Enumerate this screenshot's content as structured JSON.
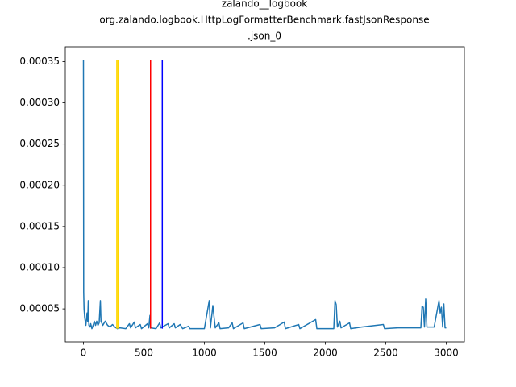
{
  "chart_data": {
    "type": "line",
    "title": [
      "zalando__logbook",
      "org.zalando.logbook.HttpLogFormatterBenchmark.fastJsonResponse",
      ".json_0"
    ],
    "x": [
      0,
      2,
      5,
      10,
      15,
      20,
      30,
      35,
      40,
      45,
      55,
      60,
      70,
      80,
      90,
      100,
      110,
      120,
      130,
      140,
      145,
      160,
      180,
      200,
      220,
      240,
      260,
      280,
      300,
      350,
      380,
      390,
      420,
      430,
      470,
      480,
      530,
      540,
      550,
      555,
      600,
      630,
      640,
      700,
      710,
      750,
      760,
      800,
      820,
      870,
      880,
      1000,
      1040,
      1050,
      1070,
      1080,
      1090,
      1120,
      1130,
      1200,
      1230,
      1240,
      1320,
      1330,
      1460,
      1470,
      1580,
      1660,
      1670,
      1780,
      1790,
      1920,
      1930,
      2070,
      2080,
      2090,
      2100,
      2120,
      2130,
      2200,
      2210,
      2300,
      2480,
      2490,
      2600,
      2790,
      2800,
      2810,
      2820,
      2830,
      2840,
      2900,
      2940,
      2950,
      2960,
      2970,
      2980,
      2990,
      3000
    ],
    "series": [
      {
        "color": "#1f77b4",
        "values": [
          0.000352,
          7e-05,
          5e-05,
          4e-05,
          3.5e-05,
          3e-05,
          4.5e-05,
          3.5e-05,
          6e-05,
          3e-05,
          2.8e-05,
          3.2e-05,
          2.6e-05,
          3e-05,
          3.5e-05,
          3e-05,
          3.5e-05,
          3e-05,
          3.3e-05,
          6e-05,
          3.5e-05,
          3e-05,
          3.5e-05,
          3e-05,
          2.8e-05,
          3.1e-05,
          2.8e-05,
          2.6e-05,
          2.7e-05,
          2.6e-05,
          3.2e-05,
          2.7e-05,
          3.4e-05,
          2.7e-05,
          3.1e-05,
          2.6e-05,
          3.2e-05,
          2.7e-05,
          4.2e-05,
          2.7e-05,
          2.6e-05,
          3.3e-05,
          2.7e-05,
          3.2e-05,
          2.7e-05,
          3.2e-05,
          2.7e-05,
          3.1e-05,
          2.6e-05,
          2.9e-05,
          2.6e-05,
          2.6e-05,
          6e-05,
          2.7e-05,
          5.4e-05,
          4e-05,
          2.7e-05,
          3.3e-05,
          2.6e-05,
          2.7e-05,
          3.3e-05,
          2.6e-05,
          3.3e-05,
          2.6e-05,
          3.1e-05,
          2.6e-05,
          2.7e-05,
          3.4e-05,
          2.6e-05,
          3.1e-05,
          2.6e-05,
          3.7e-05,
          2.6e-05,
          2.6e-05,
          6e-05,
          5.5e-05,
          2.8e-05,
          3.5e-05,
          2.7e-05,
          3.3e-05,
          2.6e-05,
          2.8e-05,
          3.1e-05,
          2.6e-05,
          2.7e-05,
          2.7e-05,
          5.3e-05,
          5.2e-05,
          2.8e-05,
          6.2e-05,
          2.8e-05,
          2.8e-05,
          6e-05,
          4.5e-05,
          5.2e-05,
          2.8e-05,
          5.6e-05,
          2.7e-05,
          2.7e-05
        ]
      }
    ],
    "vlines": [
      {
        "x": 276,
        "color": "#ffd700",
        "ymin": 2.6e-05,
        "ymax": 0.000352
      },
      {
        "x": 286,
        "color": "#ffd700",
        "ymin": 2.6e-05,
        "ymax": 0.000352
      },
      {
        "x": 555,
        "color": "#ff0000",
        "ymin": 2.6e-05,
        "ymax": 0.000352
      },
      {
        "x": 652,
        "color": "#0000ff",
        "ymin": 2.6e-05,
        "ymax": 0.000352
      }
    ],
    "xlim": [
      -150,
      3150
    ],
    "ylim": [
      1e-05,
      0.000368
    ],
    "xticks": [
      0,
      500,
      1000,
      1500,
      2000,
      2500,
      3000
    ],
    "yticks": [
      {
        "value": 5e-05,
        "label": "0.00005"
      },
      {
        "value": 0.0001,
        "label": "0.00010"
      },
      {
        "value": 0.00015,
        "label": "0.00015"
      },
      {
        "value": 0.0002,
        "label": "0.00020"
      },
      {
        "value": 0.00025,
        "label": "0.00025"
      },
      {
        "value": 0.0003,
        "label": "0.00030"
      },
      {
        "value": 0.00035,
        "label": "0.00035"
      }
    ]
  }
}
